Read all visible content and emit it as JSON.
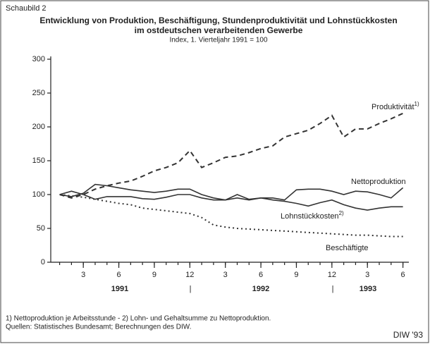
{
  "label": "Schaubild 2",
  "chart_data": {
    "type": "line",
    "title": [
      "Entwicklung von Produktion, Beschäftigung, Stundenproduktivität und Lohnstückkosten",
      "im ostdeutschen verarbeitenden Gewerbe"
    ],
    "subtitle": "Index, 1. Vierteljahr 1991 = 100",
    "x": [
      1,
      2,
      3,
      4,
      5,
      6,
      7,
      8,
      9,
      10,
      11,
      12,
      13,
      14,
      15,
      16,
      17,
      18,
      19,
      20,
      21,
      22,
      23,
      24,
      25,
      26,
      27,
      28,
      29,
      30
    ],
    "xlim": [
      0.25,
      30.5
    ],
    "xticks": [
      {
        "value": 3,
        "label": "3"
      },
      {
        "value": 6,
        "label": "6"
      },
      {
        "value": 9,
        "label": "9"
      },
      {
        "value": 12,
        "label": "12"
      },
      {
        "value": 15,
        "label": "3"
      },
      {
        "value": 18,
        "label": "6"
      },
      {
        "value": 21,
        "label": "9"
      },
      {
        "value": 24,
        "label": "12"
      },
      {
        "value": 27,
        "label": "3"
      },
      {
        "value": 30,
        "label": "6"
      }
    ],
    "years": [
      "1991",
      "1992",
      "1993"
    ],
    "ylim": [
      0,
      300
    ],
    "yticks": [
      0,
      50,
      100,
      150,
      200,
      250,
      300
    ],
    "series": [
      {
        "name": "Produktivität",
        "note": "1)",
        "color": "#333",
        "style": "dashed",
        "values": [
          100,
          95,
          100,
          108,
          113,
          117,
          120,
          127,
          135,
          140,
          147,
          165,
          140,
          147,
          155,
          157,
          162,
          168,
          172,
          185,
          190,
          195,
          205,
          217,
          185,
          197,
          197,
          205,
          212,
          220
        ]
      },
      {
        "name": "Nettoproduktion",
        "color": "#333",
        "style": "solid",
        "values": [
          100,
          97,
          102,
          115,
          113,
          110,
          107,
          105,
          103,
          105,
          108,
          108,
          100,
          95,
          92,
          95,
          92,
          95,
          95,
          92,
          107,
          108,
          108,
          105,
          100,
          105,
          104,
          100,
          95,
          110
        ]
      },
      {
        "name": "Lohnstückkosten",
        "note": "2)",
        "color": "#333",
        "style": "solid",
        "values": [
          100,
          105,
          100,
          93,
          97,
          97,
          97,
          94,
          93,
          96,
          100,
          100,
          95,
          92,
          92,
          100,
          93,
          95,
          92,
          90,
          87,
          83,
          88,
          92,
          85,
          80,
          77,
          80,
          82,
          82
        ]
      },
      {
        "name": "Beschäftigte",
        "color": "#333",
        "style": "dotted",
        "values": [
          100,
          98,
          96,
          93,
          90,
          87,
          85,
          80,
          78,
          76,
          74,
          72,
          66,
          55,
          52,
          50,
          49,
          48,
          47,
          46,
          45,
          44,
          43,
          42,
          41,
          40,
          40,
          39,
          38,
          38
        ]
      }
    ]
  },
  "footnotes": [
    "1) Nettoproduktion je Arbeitsstunde - 2) Lohn- und Gehaltsumme zu Nettoproduktion.",
    "Quellen: Statistisches Bundesamt; Berechnungen des DIW."
  ],
  "credit": "DIW '93"
}
